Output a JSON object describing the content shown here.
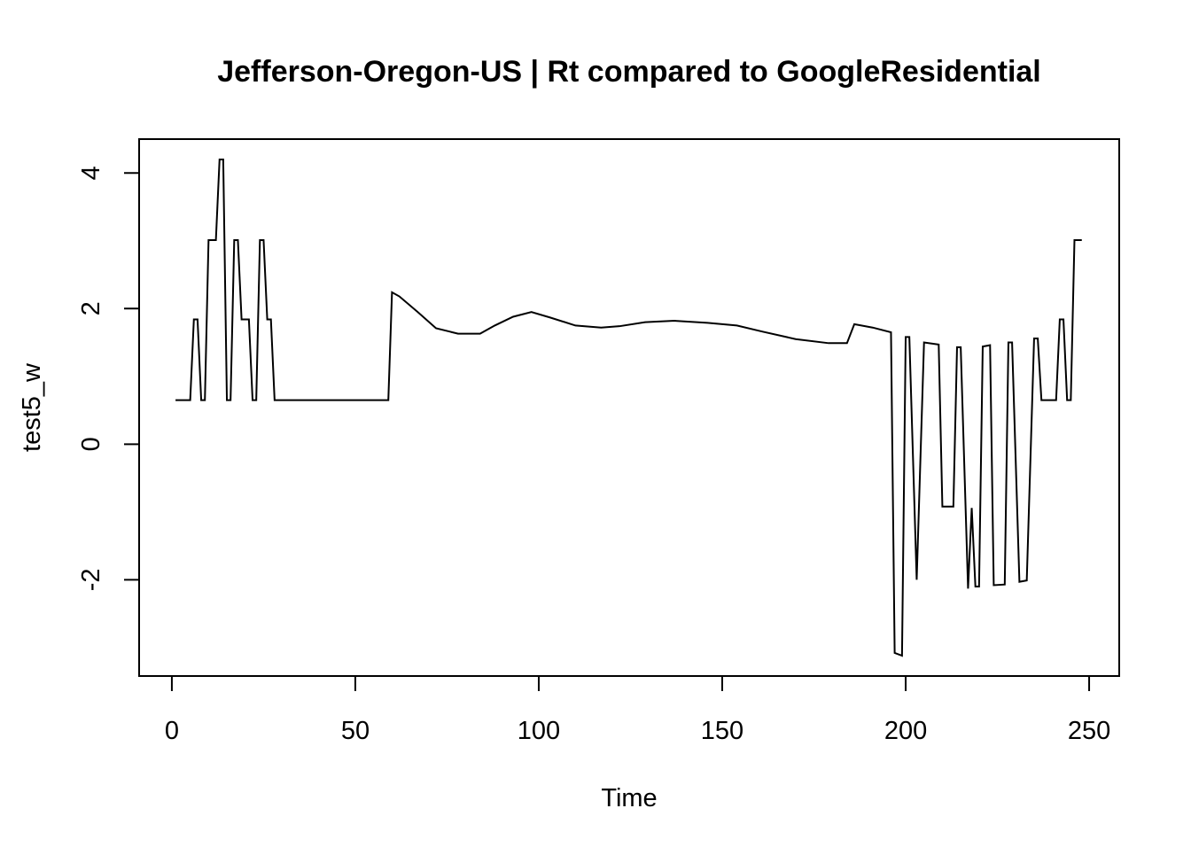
{
  "chart_data": {
    "type": "line",
    "title": "Jefferson-Oregon-US | Rt compared to GoogleResidential",
    "x_label": "Time",
    "y_label": "test5_w",
    "x": [
      1,
      5,
      6,
      7,
      8,
      9,
      10,
      12,
      13,
      14,
      15,
      16,
      17,
      18,
      19,
      21,
      22,
      23,
      24,
      25,
      26,
      27,
      28,
      59,
      60,
      62,
      67,
      72,
      78,
      84,
      88,
      93,
      98,
      103,
      110,
      117,
      122,
      129,
      137,
      146,
      154,
      161,
      170,
      179,
      184,
      186,
      191,
      196,
      197,
      199,
      200,
      201,
      203,
      205,
      209,
      210,
      213,
      214,
      215,
      217,
      218,
      219,
      220,
      221,
      223,
      224,
      227,
      228,
      229,
      231,
      233,
      235,
      236,
      237,
      241,
      242,
      243,
      244,
      245,
      246,
      248
    ],
    "series": [
      {
        "name": "test5_w",
        "color": "#000000",
        "values": [
          0.65,
          0.65,
          1.84,
          1.84,
          0.65,
          0.65,
          3.01,
          3.01,
          4.2,
          4.2,
          0.65,
          0.65,
          3.01,
          3.01,
          1.84,
          1.84,
          0.65,
          0.65,
          3.01,
          3.01,
          1.84,
          1.84,
          0.65,
          0.65,
          2.24,
          2.18,
          1.95,
          1.71,
          1.63,
          1.63,
          1.75,
          1.88,
          1.95,
          1.87,
          1.75,
          1.72,
          1.74,
          1.8,
          1.82,
          1.79,
          1.75,
          1.66,
          1.55,
          1.49,
          1.49,
          1.77,
          1.72,
          1.65,
          -3.08,
          -3.12,
          1.58,
          1.58,
          -2.0,
          1.5,
          1.47,
          -0.92,
          -0.92,
          1.43,
          1.43,
          -2.13,
          -0.94,
          -2.1,
          -2.1,
          1.44,
          1.46,
          -2.08,
          -2.07,
          1.5,
          1.5,
          -2.03,
          -2.01,
          1.56,
          1.56,
          0.65,
          0.65,
          1.84,
          1.84,
          0.65,
          0.65,
          3.01,
          3.01
        ]
      }
    ],
    "xlim": [
      -8.92,
      258.2
    ],
    "ylim": [
      -3.42,
      4.5
    ],
    "xticks": [
      0,
      50,
      100,
      150,
      200,
      250
    ],
    "yticks": [
      -2,
      0,
      2,
      4
    ]
  }
}
